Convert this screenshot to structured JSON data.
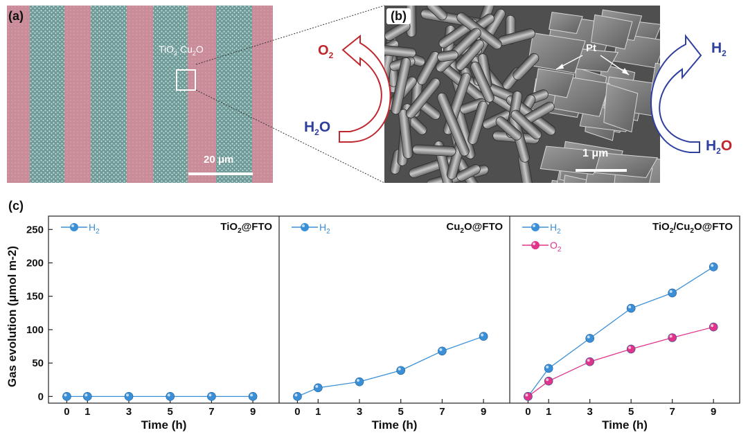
{
  "panel_a": {
    "label": "(a)",
    "material_left": "TiO",
    "material_left_sub": "2",
    "material_right": "Cu",
    "material_right_sub": "2",
    "material_right_end": "O",
    "scale_bar": "20 μm",
    "stripe_colors": {
      "pink": "#c98c98",
      "teal": "#6f9b98"
    }
  },
  "panel_b": {
    "label": "(b)",
    "annotation": "Pt",
    "scale_bar": "1 μm"
  },
  "reactions": {
    "left_top": "O",
    "left_top_sub": "2",
    "left_bottom": "H",
    "left_bottom_sub": "2",
    "left_bottom_end": "O",
    "right_top": "H",
    "right_top_sub": "2",
    "right_bottom": "H",
    "right_bottom_sub": "2",
    "right_bottom_end": "O",
    "colors": {
      "oxygen_side": "#c0262d",
      "hydrogen_side": "#2e3f9e"
    }
  },
  "panel_c": {
    "label": "(c)"
  },
  "chart_data": [
    {
      "type": "line",
      "title": "TiO2@FTO",
      "xlabel": "Time (h)",
      "ylabel": "Gas evolution (μmol m-2)",
      "x": [
        0,
        1,
        3,
        5,
        7,
        9
      ],
      "xticks": [
        0,
        1,
        3,
        5,
        7,
        9
      ],
      "ylim": [
        -10,
        270
      ],
      "yticks": [
        0,
        50,
        100,
        150,
        200,
        250
      ],
      "series": [
        {
          "name": "H2",
          "color": "#3a8fd6",
          "values": [
            0,
            0,
            0,
            0,
            0,
            0
          ]
        }
      ]
    },
    {
      "type": "line",
      "title": "Cu2O@FTO",
      "xlabel": "Time (h)",
      "x": [
        0,
        1,
        3,
        5,
        7,
        9
      ],
      "xticks": [
        0,
        1,
        3,
        5,
        7,
        9
      ],
      "ylim": [
        -10,
        270
      ],
      "series": [
        {
          "name": "H2",
          "color": "#3a8fd6",
          "values": [
            0,
            13,
            22,
            39,
            68,
            90
          ]
        }
      ]
    },
    {
      "type": "line",
      "title": "TiO2/Cu2O@FTO",
      "xlabel": "Time (h)",
      "x": [
        0,
        1,
        3,
        5,
        7,
        9
      ],
      "xticks": [
        0,
        1,
        3,
        5,
        7,
        9
      ],
      "ylim": [
        -10,
        270
      ],
      "series": [
        {
          "name": "H2",
          "color": "#3a8fd6",
          "values": [
            0,
            42,
            87,
            132,
            155,
            194
          ]
        },
        {
          "name": "O2",
          "color": "#e0338a",
          "values": [
            0,
            23,
            52,
            71,
            88,
            104
          ]
        }
      ]
    }
  ]
}
